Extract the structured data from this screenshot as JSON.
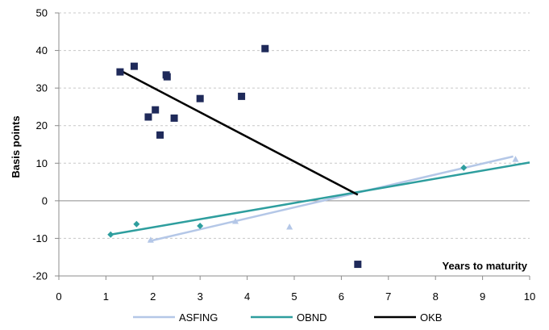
{
  "chart_data": {
    "type": "scatter",
    "title": "",
    "xlabel": "Years to maturity",
    "ylabel": "Basis points",
    "xlim": [
      0,
      10
    ],
    "ylim": [
      -20,
      50
    ],
    "x_ticks": [
      "0",
      "1",
      "2",
      "3",
      "4",
      "5",
      "6",
      "7",
      "8",
      "9",
      "10"
    ],
    "y_ticks": [
      "-20",
      "-10",
      "0",
      "10",
      "20",
      "30",
      "40",
      "50"
    ],
    "grid": "horizontal dashed",
    "legend_position": "bottom",
    "series": [
      {
        "name": "ASFING",
        "marker": "triangle",
        "color": "#b4c7e7",
        "points": [
          [
            1.95,
            -10.5
          ],
          [
            3.75,
            -5.5
          ],
          [
            4.9,
            -7
          ],
          [
            9.7,
            11
          ]
        ],
        "trend": [
          [
            1.9,
            -10.8
          ],
          [
            9.65,
            11.8
          ]
        ]
      },
      {
        "name": "OBND",
        "marker": "diamond",
        "color": "#2e9e9e",
        "points": [
          [
            1.1,
            -9
          ],
          [
            1.65,
            -6.2
          ],
          [
            3.0,
            -6.7
          ],
          [
            8.6,
            8.8
          ]
        ],
        "trend": [
          [
            1.1,
            -9.0
          ],
          [
            10.0,
            10.2
          ]
        ]
      },
      {
        "name": "OKB",
        "marker": "square",
        "color": "#1f2a5a",
        "points": [
          [
            1.3,
            34.3
          ],
          [
            1.6,
            35.8
          ],
          [
            1.9,
            22.3
          ],
          [
            2.05,
            24.2
          ],
          [
            2.15,
            17.5
          ],
          [
            2.28,
            33.5
          ],
          [
            2.3,
            33.0
          ],
          [
            2.45,
            22.0
          ],
          [
            3.0,
            27.2
          ],
          [
            3.88,
            27.8
          ],
          [
            4.38,
            40.5
          ],
          [
            6.35,
            -16.9
          ]
        ],
        "trend": [
          [
            1.3,
            34.7
          ],
          [
            6.35,
            1.6
          ]
        ],
        "trend_color": "#000000"
      }
    ]
  }
}
